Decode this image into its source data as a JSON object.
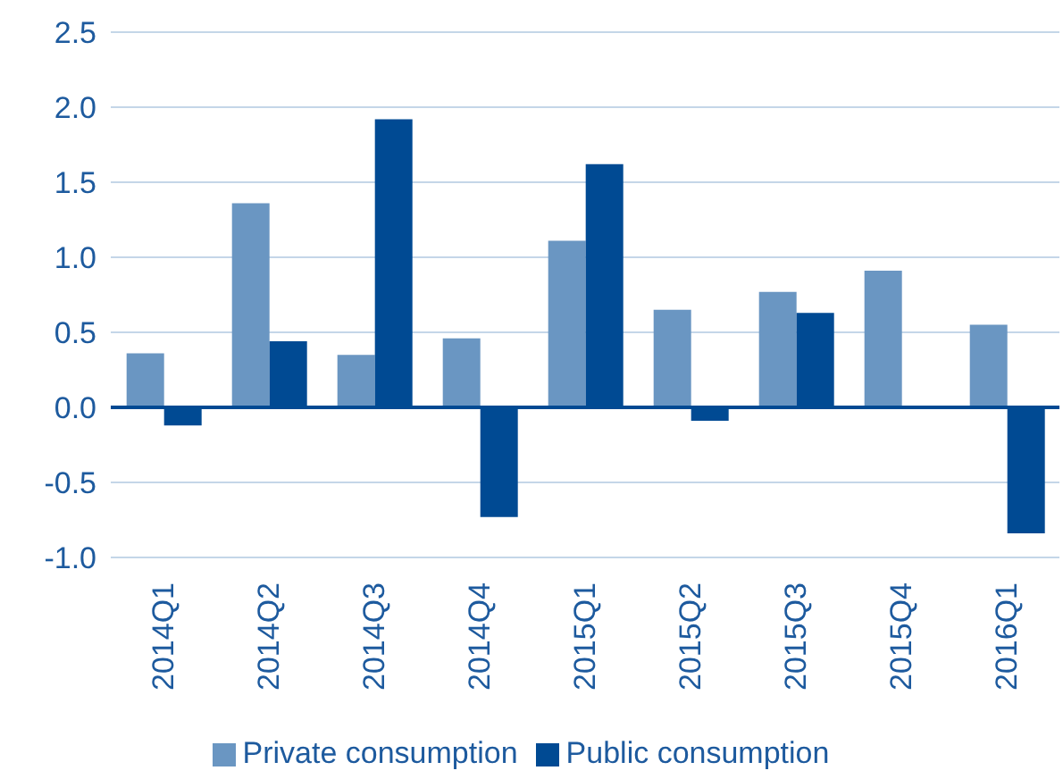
{
  "chart_data": {
    "type": "bar",
    "categories": [
      "2014Q1",
      "2014Q2",
      "2014Q3",
      "2014Q4",
      "2015Q1",
      "2015Q2",
      "2015Q3",
      "2015Q4",
      "2016Q1"
    ],
    "series": [
      {
        "name": "Private consumption",
        "color": "#6a96c2",
        "values": [
          0.36,
          1.36,
          0.35,
          0.46,
          1.11,
          0.65,
          0.77,
          0.91,
          0.55
        ]
      },
      {
        "name": "Public consumption",
        "color": "#004a93",
        "values": [
          -0.12,
          0.44,
          1.92,
          -0.73,
          1.62,
          -0.09,
          0.63,
          0,
          -0.84
        ]
      }
    ],
    "ylim": [
      -1.0,
      2.5
    ],
    "yticks": [
      {
        "value": -1,
        "label": "-1.0"
      },
      {
        "value": -0.5,
        "label": "-0.5"
      },
      {
        "value": 0,
        "label": "0.0"
      },
      {
        "value": 0.5,
        "label": "0.5"
      },
      {
        "value": 1,
        "label": "1.0"
      },
      {
        "value": 1.5,
        "label": "1.5"
      },
      {
        "value": 2,
        "label": "2.0"
      },
      {
        "value": 2.5,
        "label": "2.5"
      }
    ],
    "ref_lines": [
      {
        "axis": "y",
        "value": 0,
        "color": "#004a93"
      }
    ],
    "grid": "y",
    "legend": "bottom"
  }
}
